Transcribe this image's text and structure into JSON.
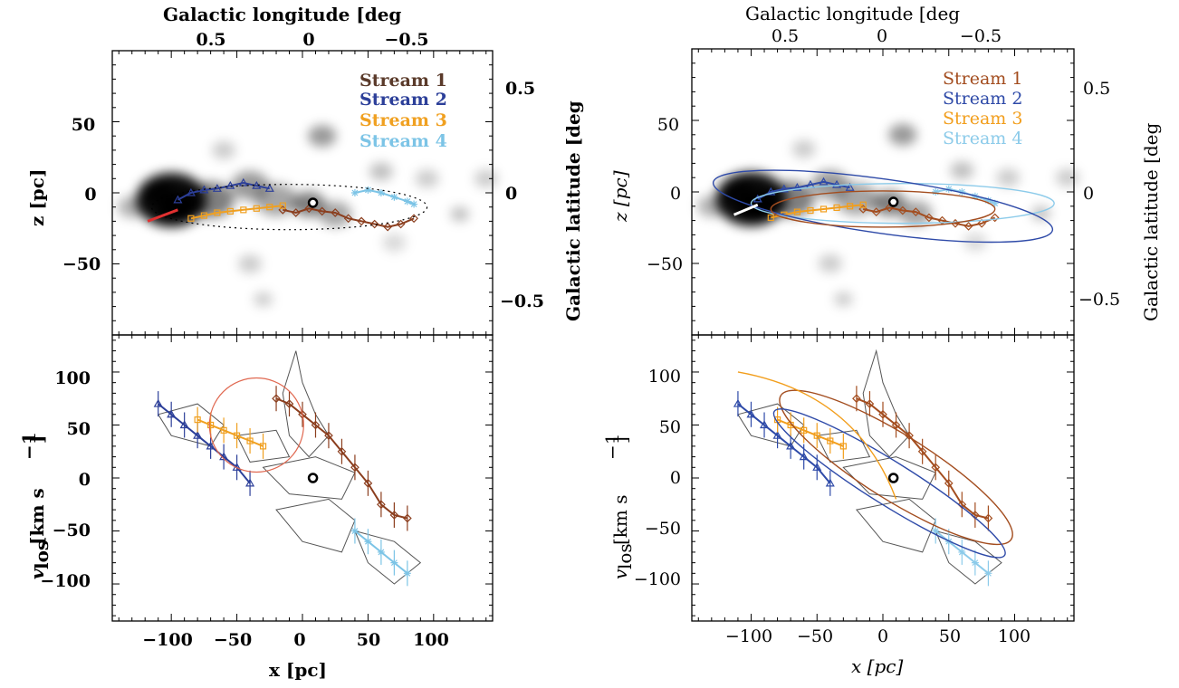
{
  "colors": {
    "stream1": "#8b3e1e",
    "stream2": "#2c3f99",
    "stream3": "#f0a020",
    "stream4": "#7cc4e6",
    "stream1_right": "#a34d1f",
    "stream2_right": "#2e4aa8",
    "stream3_right": "#f29e1c",
    "stream4_right": "#8ccbea",
    "left_legend_stream1": "#5a3a2a",
    "gas": "#000000",
    "orbit_dotted": "#000000",
    "arrow_left": "#e03030",
    "circle_left": "#e06850"
  },
  "labels": {
    "top_axis_title": "Galactic longitude [deg",
    "right_axis_title": "Galactic latitude [deg",
    "top_ticks": [
      "0.5",
      "0",
      "−0.5"
    ],
    "right_ticks": [
      "0.5",
      "0",
      "−0.5"
    ],
    "z_ylabel": "z [pc]",
    "v_ylabel_main": "v",
    "v_ylabel_sub": "los",
    "v_ylabel_units": "[km s",
    "v_ylabel_exp": "−1",
    "v_ylabel_close": "]",
    "x_xlabel": "x [pc]",
    "z_ticks": [
      "50",
      "0",
      "−50"
    ],
    "v_ticks": [
      "100",
      "50",
      "0",
      "−50",
      "−100"
    ],
    "x_ticks": [
      "−100",
      "−50",
      "0",
      "50",
      "100"
    ]
  },
  "chart_data": [
    {
      "type": "scatter",
      "panel": "left-top",
      "xlabel": "x [pc]",
      "ylabel": "z [pc]",
      "xlim": [
        -145,
        145
      ],
      "ylim": [
        -100,
        100
      ],
      "secondary_x": {
        "label": "Galactic longitude [deg",
        "ticks": [
          0.5,
          0,
          -0.5
        ]
      },
      "secondary_y": {
        "label": "Galactic latitude [deg",
        "ticks": [
          0.5,
          0,
          -0.5
        ]
      },
      "legend": "top-right",
      "series": [
        {
          "name": "Stream 1",
          "x": [
            -15,
            -5,
            5,
            15,
            25,
            35,
            45,
            55,
            65,
            75,
            85
          ],
          "y": [
            -12,
            -14,
            -11,
            -13,
            -14,
            -18,
            -20,
            -22,
            -24,
            -22,
            -18
          ]
        },
        {
          "name": "Stream 2",
          "x": [
            -95,
            -85,
            -75,
            -65,
            -55,
            -45,
            -35,
            -25
          ],
          "y": [
            -5,
            0,
            2,
            3,
            5,
            7,
            5,
            3
          ]
        },
        {
          "name": "Stream 3",
          "x": [
            -85,
            -75,
            -65,
            -55,
            -45,
            -35,
            -25,
            -15
          ],
          "y": [
            -18,
            -16,
            -14,
            -13,
            -12,
            -11,
            -10,
            -9
          ]
        },
        {
          "name": "Stream 4",
          "x": [
            40,
            50,
            60,
            70,
            80,
            85
          ],
          "y": [
            0,
            2,
            0,
            -3,
            -6,
            -8
          ]
        }
      ]
    },
    {
      "type": "scatter",
      "panel": "left-bottom",
      "xlabel": "x [pc]",
      "ylabel": "v_los [km s^-1]",
      "xlim": [
        -145,
        145
      ],
      "ylim": [
        -135,
        135
      ],
      "series": [
        {
          "x": [
            -20,
            -10,
            0,
            10,
            20,
            30,
            40,
            50,
            60,
            70,
            80
          ],
          "y": [
            75,
            70,
            60,
            50,
            40,
            25,
            10,
            -5,
            -25,
            -35,
            -38
          ]
        },
        {
          "x": [
            -110,
            -100,
            -90,
            -80,
            -70,
            -60,
            -50,
            -40
          ],
          "y": [
            70,
            60,
            50,
            40,
            30,
            20,
            10,
            -5
          ]
        },
        {
          "x": [
            -80,
            -70,
            -60,
            -50,
            -40,
            -30
          ],
          "y": [
            55,
            50,
            45,
            40,
            35,
            30
          ]
        },
        {
          "x": [
            40,
            50,
            60,
            70,
            80
          ],
          "y": [
            -50,
            -60,
            -70,
            -80,
            -90
          ]
        }
      ]
    },
    {
      "type": "scatter",
      "panel": "right-top",
      "xlabel": "x [pc]",
      "ylabel": "z [pc]",
      "xlim": [
        -145,
        145
      ],
      "ylim": [
        -100,
        100
      ],
      "secondary_x": {
        "label": "Galactic longitude [deg",
        "ticks": [
          0.5,
          0,
          -0.5
        ]
      },
      "secondary_y": {
        "label": "Galactic latitude [deg",
        "ticks": [
          0.5,
          0,
          -0.5
        ]
      },
      "legend": "top-right",
      "series": [
        {
          "name": "Stream 1",
          "x": [
            -15,
            -5,
            5,
            15,
            25,
            35,
            45,
            55,
            65,
            75,
            85
          ],
          "y": [
            -12,
            -14,
            -11,
            -13,
            -14,
            -18,
            -20,
            -22,
            -24,
            -22,
            -18
          ]
        },
        {
          "name": "Stream 2",
          "x": [
            -95,
            -85,
            -75,
            -65,
            -55,
            -45,
            -35,
            -25
          ],
          "y": [
            -5,
            0,
            2,
            3,
            5,
            7,
            5,
            3
          ]
        },
        {
          "name": "Stream 3",
          "x": [
            -85,
            -75,
            -65,
            -55,
            -45,
            -35,
            -25,
            -15
          ],
          "y": [
            -18,
            -16,
            -14,
            -13,
            -12,
            -11,
            -10,
            -9
          ]
        },
        {
          "name": "Stream 4",
          "x": [
            40,
            50,
            60,
            70,
            80,
            85
          ],
          "y": [
            0,
            2,
            0,
            -3,
            -6,
            -8
          ]
        }
      ]
    },
    {
      "type": "scatter",
      "panel": "right-bottom",
      "xlabel": "x [pc]",
      "ylabel": "v_los [km s^-1]",
      "xlim": [
        -145,
        145
      ],
      "ylim": [
        -135,
        135
      ],
      "series": [
        {
          "x": [
            -20,
            -10,
            0,
            10,
            20,
            30,
            40,
            50,
            60,
            70,
            80
          ],
          "y": [
            75,
            70,
            60,
            50,
            40,
            25,
            10,
            -5,
            -25,
            -35,
            -38
          ]
        },
        {
          "x": [
            -110,
            -100,
            -90,
            -80,
            -70,
            -60,
            -50,
            -40
          ],
          "y": [
            70,
            60,
            50,
            40,
            30,
            20,
            10,
            -5
          ]
        },
        {
          "x": [
            -80,
            -70,
            -60,
            -50,
            -40,
            -30
          ],
          "y": [
            55,
            50,
            45,
            40,
            35,
            30
          ]
        },
        {
          "x": [
            40,
            50,
            60,
            70,
            80
          ],
          "y": [
            -50,
            -60,
            -70,
            -80,
            -90
          ]
        }
      ]
    }
  ]
}
